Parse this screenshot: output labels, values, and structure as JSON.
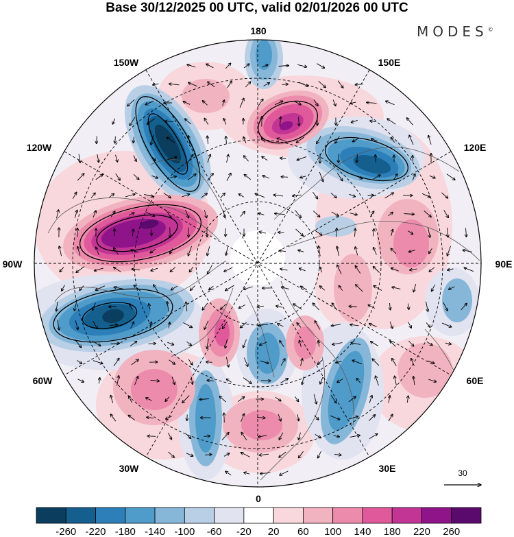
{
  "title": "Base 30/12/2025 00 UTC, valid 02/01/2026 00 UTC",
  "brand": {
    "name": "MODES",
    "mark": "©"
  },
  "map": {
    "projection": "north-polar-stereographic",
    "longitude_labels": {
      "lon_180": "180",
      "lon_150e": "150E",
      "lon_120e": "120E",
      "lon_90e": "90E",
      "lon_60e": "60E",
      "lon_30e": "30E",
      "lon_0": "0",
      "lon_30w": "30W",
      "lon_60w": "60W",
      "lon_90w": "90W",
      "lon_120w": "120W",
      "lon_150w": "150W"
    }
  },
  "reference_vector": {
    "label": "30"
  },
  "colorbar": {
    "ticks": [
      "-260",
      "-220",
      "-180",
      "-140",
      "-100",
      "-60",
      "-20",
      "20",
      "60",
      "100",
      "140",
      "180",
      "220",
      "260"
    ],
    "colors": [
      "#0b3e5e",
      "#145f8d",
      "#2c7fb8",
      "#4f9bc9",
      "#86b7d9",
      "#b9cfe6",
      "#e1e3f0",
      "#ffffff",
      "#f8d8dc",
      "#f2b3c1",
      "#ec8bab",
      "#e05a9b",
      "#c23595",
      "#8f1389",
      "#5a0a6d"
    ]
  },
  "colors": {
    "negative_strong": "#145f8d",
    "positive_strong": "#8f1389",
    "grid": "#000000"
  }
}
